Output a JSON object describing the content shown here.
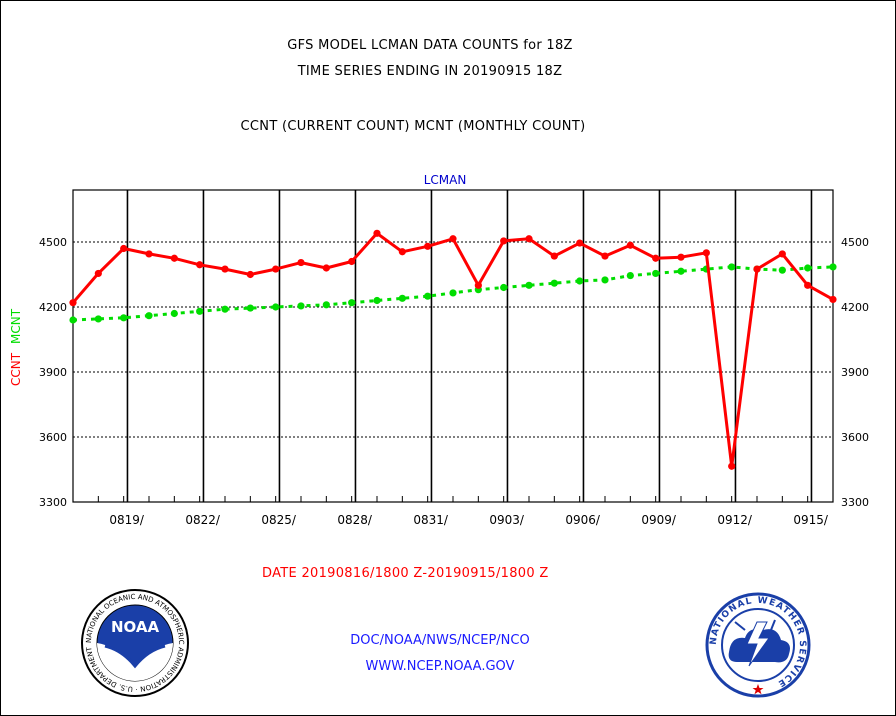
{
  "header": {
    "title_line1": "GFS MODEL LCMAN DATA COUNTS for 18Z",
    "title_line2": "TIME SERIES ENDING IN 20190915 18Z",
    "subtitle": "CCNT (CURRENT COUNT) MCNT (MONTHLY COUNT)"
  },
  "footer": {
    "date_range": "DATE 20190816/1800 Z-20190915/1800 Z",
    "credit_line1": "DOC/NOAA/NWS/NCEP/NCO",
    "credit_line2": "WWW.NCEP.NOAA.GOV",
    "noaa_logo_text": "NOAA",
    "noaa_ring_text": "NATIONAL OCEANIC AND ATMOSPHERIC ADMINISTRATION · U.S. DEPARTMENT OF COMMERCE",
    "nws_ring_text": "NATIONAL WEATHER SERVICE"
  },
  "chart_data": {
    "type": "line",
    "title": "LCMAN",
    "ylabel_red": "CCNT",
    "ylabel_green": "MCNT",
    "ylim": [
      3300,
      4740
    ],
    "xlim": [
      0,
      30
    ],
    "yticks": [
      3300,
      3600,
      3900,
      4200,
      4500
    ],
    "ytick_labels": [
      "3300",
      "3600",
      "3900",
      "4200",
      "4500"
    ],
    "xtick_labels": [
      "0819/",
      "0822/",
      "0825/",
      "0828/",
      "0831/",
      "0903/",
      "0906/",
      "0909/",
      "0912/",
      "0915/"
    ],
    "xtick_days": [
      2,
      5,
      8,
      11,
      14,
      17,
      20,
      23,
      26,
      29
    ],
    "vgrid_days": [
      2.15,
      5.15,
      8.15,
      11.15,
      14.15,
      17.15,
      20.15,
      23.15,
      26.15,
      29.15
    ],
    "grid": true,
    "colors": {
      "ccnt": "#ff0000",
      "mcnt": "#00dd00",
      "title": "#0000cc",
      "axis": "#000000"
    },
    "series": [
      {
        "name": "CCNT",
        "style": "solid",
        "values": [
          4220,
          4355,
          4470,
          4445,
          4425,
          4395,
          4375,
          4350,
          4375,
          4405,
          4380,
          4410,
          4540,
          4455,
          4480,
          4515,
          4300,
          4505,
          4515,
          4435,
          4495,
          4435,
          4485,
          4425,
          4430,
          4450,
          3465,
          4375,
          4445,
          4300,
          4235
        ]
      },
      {
        "name": "MCNT",
        "style": "dotted",
        "values": [
          4140,
          4145,
          4150,
          4160,
          4170,
          4180,
          4190,
          4195,
          4200,
          4205,
          4210,
          4220,
          4230,
          4240,
          4250,
          4265,
          4280,
          4290,
          4300,
          4310,
          4320,
          4325,
          4345,
          4355,
          4365,
          4375,
          4385,
          4375,
          4370,
          4380,
          4385
        ]
      }
    ]
  }
}
